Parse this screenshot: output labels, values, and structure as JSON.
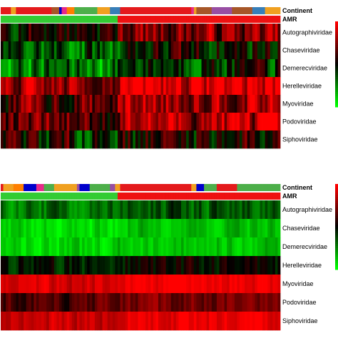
{
  "chart_data": [
    {
      "type": "heatmap",
      "title": "",
      "annotation_rows": [
        "Continent",
        "AMR"
      ],
      "rows": [
        "Autographiviridae",
        "Chaseviridae",
        "Demerecviridae",
        "Herelleviridae",
        "Myoviridae",
        "Podoviridae",
        "Siphoviridae"
      ],
      "amr_split": 0.42,
      "n_columns": 110,
      "row_levels": [
        0.15,
        -0.35,
        -0.45,
        0.55,
        0.35,
        0.35,
        0.0
      ],
      "row_contrast": [
        0.7,
        0.75,
        0.7,
        0.7,
        0.75,
        0.8,
        0.8
      ],
      "color_scale": [
        "#00ff00",
        "#000000",
        "#ff0000"
      ],
      "seed": 7
    },
    {
      "type": "heatmap",
      "title": "",
      "annotation_rows": [
        "Continent",
        "AMR"
      ],
      "rows": [
        "Autographiviridae",
        "Chaseviridae",
        "Demerecviridae",
        "Herelleviridae",
        "Myoviridae",
        "Podoviridae",
        "Siphoviridae"
      ],
      "amr_split": 0.42,
      "n_columns": 110,
      "row_levels": [
        -0.45,
        -0.85,
        -0.85,
        -0.1,
        0.85,
        0.3,
        0.8
      ],
      "row_contrast": [
        0.35,
        0.25,
        0.25,
        0.4,
        0.25,
        0.35,
        0.25
      ],
      "color_scale": [
        "#00ff00",
        "#000000",
        "#ff0000"
      ],
      "seed": 19
    }
  ],
  "continent_palette": [
    "#e41a1c",
    "#ff7f00",
    "#377eb8",
    "#984ea3",
    "#e7298a",
    "#4daf4a",
    "#a65628",
    "#f0a020",
    "#0000cc"
  ],
  "amr_colors": {
    "absent": "#33cc33",
    "present": "#ee1111"
  },
  "colors": {
    "background": "#ffffff",
    "label": "#000000"
  }
}
